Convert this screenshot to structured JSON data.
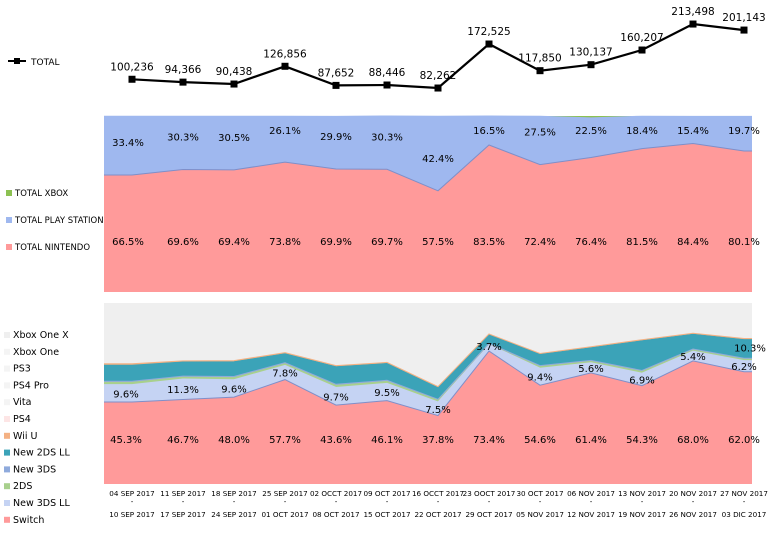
{
  "weeks": [
    {
      "start": "04 SEP 2017",
      "end": "10 SEP 2017"
    },
    {
      "start": "11 SEP 2017",
      "end": "17 SEP 2017"
    },
    {
      "start": "18 SEP 2017",
      "end": "24 SEP 2017"
    },
    {
      "start": "25 SEP 2017",
      "end": "01 OCT 2017"
    },
    {
      "start": "02 OCCT 2017",
      "end": "08 OCT 2017"
    },
    {
      "start": "09 OCT 2017",
      "end": "15 OCT 2017"
    },
    {
      "start": "16 OCCT 2017",
      "end": "22 OCT 2017"
    },
    {
      "start": "23 OOCT 2017",
      "end": "29 OCT 2017"
    },
    {
      "start": "30 OCT 2017",
      "end": "05 NOV 2017"
    },
    {
      "start": "06 NOV 2017",
      "end": "12 NOV 2017"
    },
    {
      "start": "13 NOV 2017",
      "end": "19 NOV 2017"
    },
    {
      "start": "20 NOV 2017",
      "end": "26 NOV 2017"
    },
    {
      "start": "27 NOV 2017",
      "end": "03 DIC 2017"
    }
  ],
  "chart_data": [
    {
      "type": "line",
      "series": [
        {
          "name": "TOTAL",
          "color": "#000000",
          "values": [
            100236,
            94366,
            90438,
            126856,
            87652,
            88446,
            82262,
            172525,
            117850,
            130137,
            160207,
            213498,
            201143
          ],
          "labels": [
            "100,236",
            "94,366",
            "90,438",
            "126,856",
            "87,652",
            "88,446",
            "82,262",
            "172,525",
            "117,850",
            "130,137",
            "160,207",
            "213,498",
            "201,143"
          ]
        }
      ],
      "ylim": [
        70000,
        230000
      ]
    },
    {
      "type": "area",
      "stacked": "percent",
      "series": [
        {
          "name": "TOTAL NINTENDO",
          "color": "#ff9a9a",
          "values": [
            66.5,
            69.6,
            69.4,
            73.8,
            69.9,
            69.7,
            57.5,
            83.5,
            72.4,
            76.4,
            81.5,
            84.4,
            80.1
          ],
          "labels": [
            "66.5%",
            "69.6%",
            "69.4%",
            "73.8%",
            "69.9%",
            "69.7%",
            "57.5%",
            "83.5%",
            "72.4%",
            "76.4%",
            "81.5%",
            "84.4%",
            "80.1%"
          ]
        },
        {
          "name": "TOTAL PLAY STATION",
          "color": "#9fb8ef",
          "values": [
            33.4,
            30.3,
            30.5,
            26.1,
            29.9,
            30.3,
            42.4,
            16.5,
            27.5,
            22.5,
            18.4,
            15.4,
            19.7
          ],
          "labels": [
            "33.4%",
            "30.3%",
            "30.5%",
            "26.1%",
            "29.9%",
            "30.3%",
            "42.4%",
            "16.5%",
            "27.5%",
            "22.5%",
            "18.4%",
            "15.4%",
            "19.7%"
          ]
        },
        {
          "name": "TOTAL XBOX",
          "color": "#8cc152",
          "values": [
            0.1,
            0.1,
            0.1,
            0.1,
            0.2,
            0.0,
            0.1,
            0.0,
            0.1,
            1.1,
            0.1,
            0.2,
            0.2
          ]
        }
      ],
      "ylim": [
        0,
        100
      ]
    },
    {
      "type": "area",
      "stacked": "percent",
      "series": [
        {
          "name": "Switch",
          "color": "#ff9a9a",
          "values": [
            45.3,
            46.7,
            48.0,
            57.7,
            43.6,
            46.1,
            37.8,
            73.4,
            54.6,
            61.4,
            54.3,
            68.0,
            62.0
          ],
          "labels": [
            "45.3%",
            "46.7%",
            "48.0%",
            "57.7%",
            "43.6%",
            "46.1%",
            "37.8%",
            "73.4%",
            "54.6%",
            "61.4%",
            "54.3%",
            "68.0%",
            "62.0%"
          ]
        },
        {
          "name": "New 3DS LL",
          "color": "#c5d3f3",
          "values": [
            9.6,
            11.3,
            9.6,
            7.8,
            9.7,
            9.5,
            7.5,
            3.7,
            9.4,
            5.6,
            6.9,
            5.4,
            6.2
          ],
          "labels": [
            "9.6%",
            "11.3%",
            "9.6%",
            "7.8%",
            "9.7%",
            "9.5%",
            "7.5%",
            "3.7%",
            "9.4%",
            "5.6%",
            "6.9%",
            "5.4%",
            "6.2%"
          ]
        },
        {
          "name": "2DS",
          "color": "#a8d08d",
          "values": [
            1.3,
            1.1,
            1.2,
            1.0,
            1.2,
            1.1,
            1.0,
            0.4,
            1.0,
            0.9,
            1.1,
            0.8,
            0.8
          ]
        },
        {
          "name": "New 3DS",
          "color": "#8faadc",
          "values": [
            0.6,
            0.5,
            0.6,
            0.5,
            0.6,
            0.6,
            0.5,
            0.2,
            0.4,
            0.4,
            0.4,
            0.4,
            0.5
          ]
        },
        {
          "name": "New 2DS LL",
          "color": "#3ba3b8",
          "values": [
            8.8,
            7.8,
            8.1,
            5.0,
            9.7,
            9.3,
            6.4,
            4.9,
            6.2,
            7.0,
            16.4,
            8.1,
            10.3
          ],
          "labels": [
            "",
            "",
            "",
            "",
            "",
            "",
            "",
            "",
            "",
            "",
            "",
            "",
            "10.3%"
          ]
        },
        {
          "name": "Wii U",
          "color": "#f4b183",
          "values": [
            0.8,
            0.6,
            0.7,
            0.6,
            0.6,
            0.6,
            0.6,
            0.3,
            0.5,
            0.5,
            0.6,
            0.6,
            0.6
          ]
        },
        {
          "name": "PS4",
          "color": "#fde5e5",
          "values": [
            0,
            0,
            0,
            0,
            0,
            0,
            0,
            0,
            0,
            0,
            0,
            0,
            0
          ]
        },
        {
          "name": "Vita",
          "color": "#f4f4f4",
          "values": [
            0,
            0,
            0,
            0,
            0,
            0,
            0,
            0,
            0,
            0,
            0,
            0,
            0
          ]
        },
        {
          "name": "PS4 Pro",
          "color": "#f4f4f4",
          "values": [
            0,
            0,
            0,
            0,
            0,
            0,
            0,
            0,
            0,
            0,
            0,
            0,
            0
          ]
        },
        {
          "name": "PS3",
          "color": "#f4f4f4",
          "values": [
            0,
            0,
            0,
            0,
            0,
            0,
            0,
            0,
            0,
            0,
            0,
            0,
            0
          ]
        },
        {
          "name": "Xbox One",
          "color": "#f4f4f4",
          "values": [
            0,
            0,
            0,
            0,
            0,
            0,
            0,
            0,
            0,
            0,
            0,
            0,
            0
          ]
        },
        {
          "name": "Xbox One X",
          "color": "#efefef",
          "values": [
            33.6,
            32.0,
            31.8,
            27.4,
            34.6,
            32.8,
            46.2,
            17.1,
            27.9,
            24.2,
            20.3,
            16.7,
            19.6
          ]
        }
      ],
      "ylim": [
        0,
        100
      ]
    }
  ]
}
